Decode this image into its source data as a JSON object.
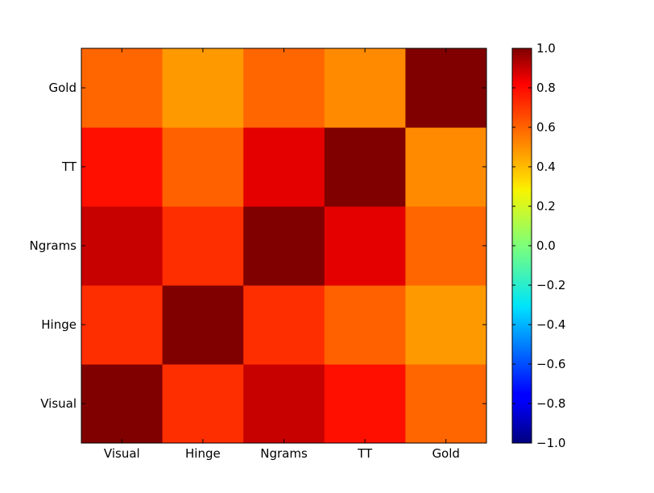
{
  "chart_data": {
    "type": "heatmap",
    "title": "",
    "xlabel": "",
    "ylabel": "",
    "x_categories": [
      "Visual",
      "Hinge",
      "Ngrams",
      "TT",
      "Gold"
    ],
    "y_categories": [
      "Visual",
      "Hinge",
      "Ngrams",
      "TT",
      "Gold"
    ],
    "y_order": "bottom-to-top",
    "matrix": [
      [
        1.0,
        0.66,
        0.86,
        0.72,
        0.55
      ],
      [
        0.66,
        1.0,
        0.66,
        0.56,
        0.45
      ],
      [
        0.86,
        0.66,
        1.0,
        0.8,
        0.55
      ],
      [
        0.72,
        0.56,
        0.8,
        1.0,
        0.48
      ],
      [
        0.55,
        0.45,
        0.55,
        0.48,
        1.0
      ]
    ],
    "colormap": "jet",
    "vmin": -1.0,
    "vmax": 1.0,
    "colorbar": {
      "ticks": [
        -1.0,
        -0.8,
        -0.6,
        -0.4,
        -0.2,
        0.0,
        0.2,
        0.4,
        0.6,
        0.8,
        1.0
      ],
      "tick_labels": [
        "−1.0",
        "−0.8",
        "−0.6",
        "−0.4",
        "−0.2",
        "0.0",
        "0.2",
        "0.4",
        "0.6",
        "0.8",
        "1.0"
      ]
    },
    "grid": false,
    "legend": "colorbar-right"
  }
}
